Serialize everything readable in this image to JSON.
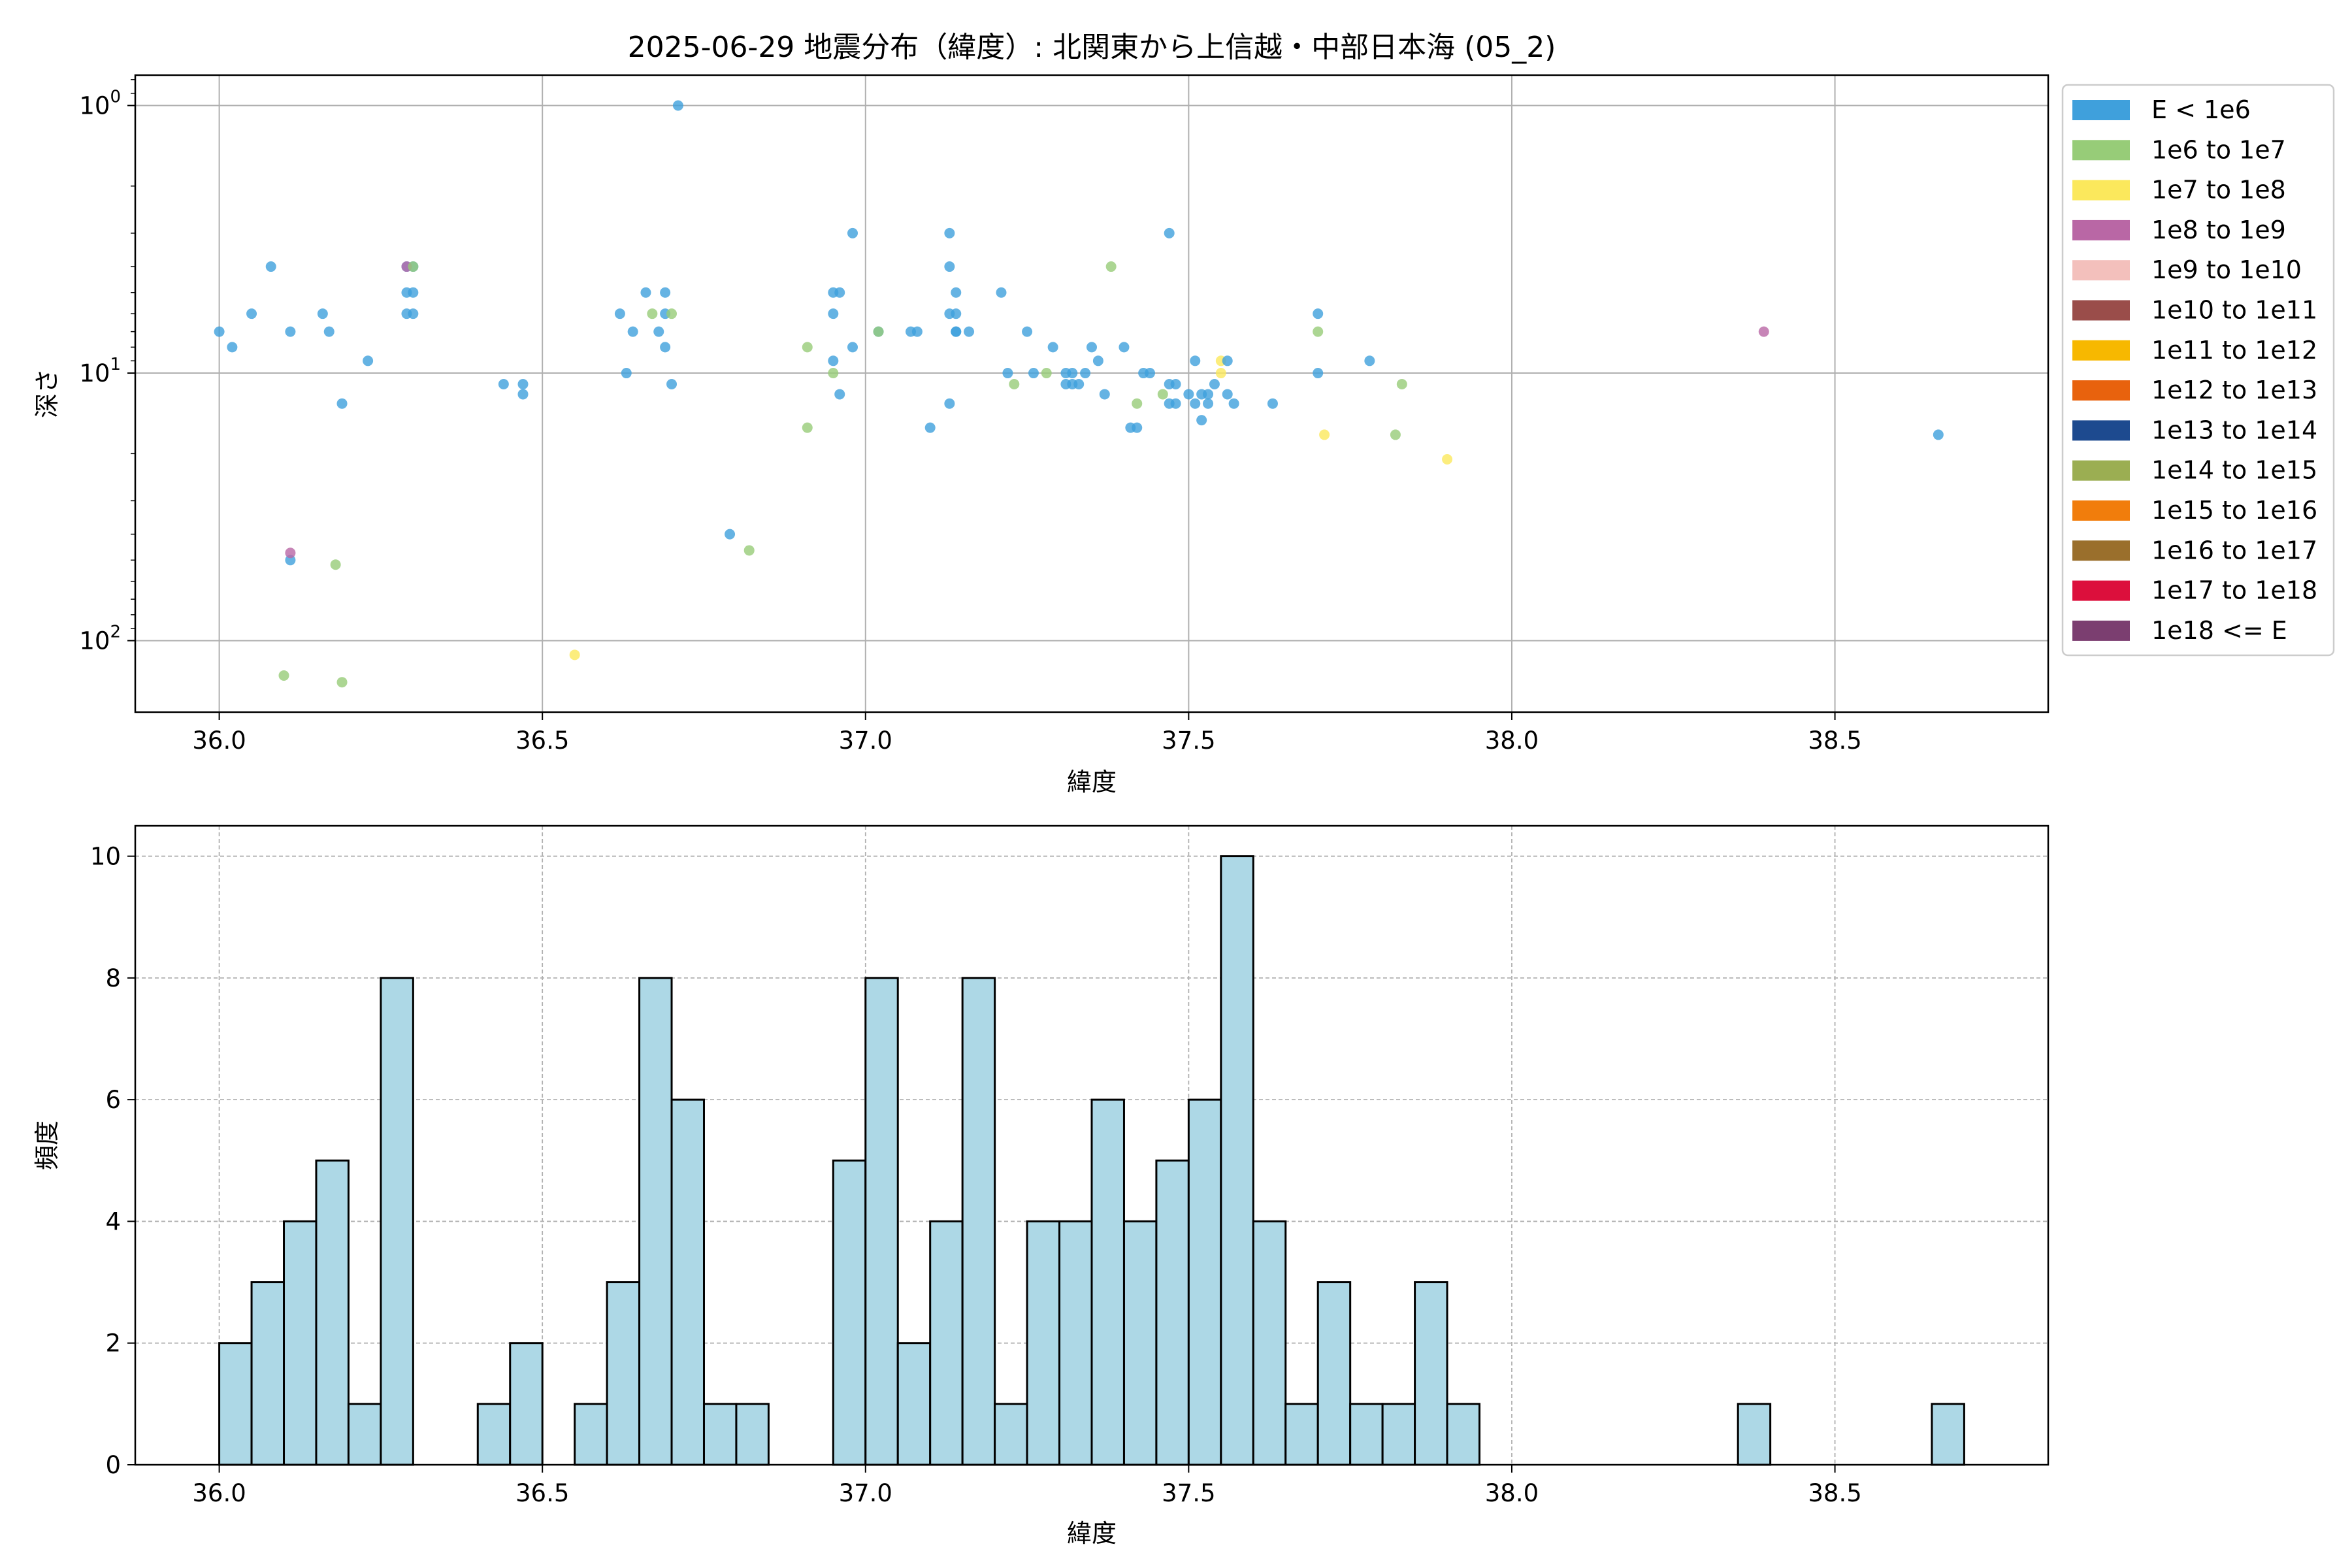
{
  "chart_data": [
    {
      "type": "scatter",
      "title": "2025-06-29 地震分布（緯度）: 北関東から上信越・中部日本海 (05_2)",
      "xlabel": "緯度",
      "ylabel": "深さ",
      "xlim": [
        35.87,
        38.83
      ],
      "ylim": [
        185,
        0.77
      ],
      "yscale": "log",
      "y_inverted": true,
      "grid": true,
      "legend_position": "outside-right",
      "x_ticks": [
        "36.0",
        "36.5",
        "37.0",
        "37.5",
        "38.0",
        "38.5"
      ],
      "x_tick_values": [
        36.0,
        36.5,
        37.0,
        37.5,
        38.0,
        38.5
      ],
      "y_tick_values": [
        1,
        10,
        100
      ],
      "y_tick_labels": [
        {
          "base": "10",
          "exp": "0"
        },
        {
          "base": "10",
          "exp": "1"
        },
        {
          "base": "10",
          "exp": "2"
        }
      ],
      "legend": [
        {
          "label": "E < 1e6",
          "color": "#3fa0dc"
        },
        {
          "label": "1e6 to 1e7",
          "color": "#97cc78"
        },
        {
          "label": "1e7 to 1e8",
          "color": "#fbe85c"
        },
        {
          "label": "1e8 to 1e9",
          "color": "#b967a5"
        },
        {
          "label": "1e9 to 1e10",
          "color": "#f3c0bc"
        },
        {
          "label": "1e10 to 1e11",
          "color": "#9a4d4a"
        },
        {
          "label": "1e11 to 1e12",
          "color": "#f7b800"
        },
        {
          "label": "1e12 to 1e13",
          "color": "#e8620d"
        },
        {
          "label": "1e13 to 1e14",
          "color": "#1d4a8f"
        },
        {
          "label": "1e14 to 1e15",
          "color": "#9bae52"
        },
        {
          "label": "1e15 to 1e16",
          "color": "#f17d0c"
        },
        {
          "label": "1e16 to 1e17",
          "color": "#9a6f2c"
        },
        {
          "label": "1e17 to 1e18",
          "color": "#dc0f3c"
        },
        {
          "label": "1e18 <= E",
          "color": "#7b3e70"
        }
      ],
      "points": [
        {
          "x": 36.0,
          "y": 7,
          "c": 0
        },
        {
          "x": 36.02,
          "y": 8,
          "c": 0
        },
        {
          "x": 36.05,
          "y": 6,
          "c": 0
        },
        {
          "x": 36.08,
          "y": 4,
          "c": 0
        },
        {
          "x": 36.11,
          "y": 7,
          "c": 0
        },
        {
          "x": 36.11,
          "y": 50,
          "c": 0
        },
        {
          "x": 36.11,
          "y": 47,
          "c": 3
        },
        {
          "x": 36.1,
          "y": 135,
          "c": 1
        },
        {
          "x": 36.16,
          "y": 6,
          "c": 0
        },
        {
          "x": 36.17,
          "y": 7,
          "c": 0
        },
        {
          "x": 36.18,
          "y": 52,
          "c": 1
        },
        {
          "x": 36.19,
          "y": 13,
          "c": 0
        },
        {
          "x": 36.19,
          "y": 143,
          "c": 1
        },
        {
          "x": 36.23,
          "y": 9,
          "c": 0
        },
        {
          "x": 36.29,
          "y": 4,
          "c": 0
        },
        {
          "x": 36.29,
          "y": 5,
          "c": 0
        },
        {
          "x": 36.29,
          "y": 6,
          "c": 0
        },
        {
          "x": 36.3,
          "y": 4,
          "c": 0
        },
        {
          "x": 36.3,
          "y": 5,
          "c": 0
        },
        {
          "x": 36.3,
          "y": 6,
          "c": 0
        },
        {
          "x": 36.29,
          "y": 4,
          "c": 3
        },
        {
          "x": 36.3,
          "y": 4,
          "c": 1
        },
        {
          "x": 36.44,
          "y": 11,
          "c": 0
        },
        {
          "x": 36.47,
          "y": 11,
          "c": 0
        },
        {
          "x": 36.47,
          "y": 12,
          "c": 0
        },
        {
          "x": 36.55,
          "y": 113,
          "c": 2
        },
        {
          "x": 36.62,
          "y": 6,
          "c": 0
        },
        {
          "x": 36.63,
          "y": 10,
          "c": 0
        },
        {
          "x": 36.64,
          "y": 7,
          "c": 0
        },
        {
          "x": 36.66,
          "y": 5,
          "c": 0
        },
        {
          "x": 36.67,
          "y": 6,
          "c": 1
        },
        {
          "x": 36.68,
          "y": 7,
          "c": 0
        },
        {
          "x": 36.69,
          "y": 5,
          "c": 0
        },
        {
          "x": 36.69,
          "y": 6,
          "c": 0
        },
        {
          "x": 36.7,
          "y": 6,
          "c": 1
        },
        {
          "x": 36.69,
          "y": 8,
          "c": 0
        },
        {
          "x": 36.7,
          "y": 11,
          "c": 0
        },
        {
          "x": 36.71,
          "y": 1,
          "c": 0
        },
        {
          "x": 36.79,
          "y": 40,
          "c": 0
        },
        {
          "x": 36.82,
          "y": 46,
          "c": 1
        },
        {
          "x": 36.91,
          "y": 8,
          "c": 1
        },
        {
          "x": 36.91,
          "y": 16,
          "c": 1
        },
        {
          "x": 36.95,
          "y": 5,
          "c": 0
        },
        {
          "x": 36.96,
          "y": 5,
          "c": 0
        },
        {
          "x": 36.95,
          "y": 6,
          "c": 0
        },
        {
          "x": 36.95,
          "y": 9,
          "c": 0
        },
        {
          "x": 36.95,
          "y": 10,
          "c": 1
        },
        {
          "x": 36.96,
          "y": 12,
          "c": 0
        },
        {
          "x": 36.98,
          "y": 3,
          "c": 0
        },
        {
          "x": 36.98,
          "y": 8,
          "c": 0
        },
        {
          "x": 37.02,
          "y": 7,
          "c": 0
        },
        {
          "x": 37.02,
          "y": 7,
          "c": 1
        },
        {
          "x": 37.07,
          "y": 7,
          "c": 0
        },
        {
          "x": 37.08,
          "y": 7,
          "c": 0
        },
        {
          "x": 37.1,
          "y": 16,
          "c": 0
        },
        {
          "x": 37.13,
          "y": 3,
          "c": 0
        },
        {
          "x": 37.13,
          "y": 4,
          "c": 0
        },
        {
          "x": 37.14,
          "y": 5,
          "c": 0
        },
        {
          "x": 37.13,
          "y": 6,
          "c": 0
        },
        {
          "x": 37.14,
          "y": 6,
          "c": 0
        },
        {
          "x": 37.14,
          "y": 7,
          "c": 0
        },
        {
          "x": 37.14,
          "y": 7,
          "c": 0
        },
        {
          "x": 37.16,
          "y": 7,
          "c": 0
        },
        {
          "x": 37.13,
          "y": 13,
          "c": 0
        },
        {
          "x": 37.21,
          "y": 5,
          "c": 0
        },
        {
          "x": 37.22,
          "y": 10,
          "c": 0
        },
        {
          "x": 37.23,
          "y": 11,
          "c": 1
        },
        {
          "x": 37.25,
          "y": 7,
          "c": 0
        },
        {
          "x": 37.26,
          "y": 10,
          "c": 0
        },
        {
          "x": 37.28,
          "y": 10,
          "c": 1
        },
        {
          "x": 37.29,
          "y": 8,
          "c": 0
        },
        {
          "x": 37.31,
          "y": 10,
          "c": 0
        },
        {
          "x": 37.31,
          "y": 11,
          "c": 0
        },
        {
          "x": 37.32,
          "y": 10,
          "c": 0
        },
        {
          "x": 37.32,
          "y": 11,
          "c": 0
        },
        {
          "x": 37.33,
          "y": 11,
          "c": 0
        },
        {
          "x": 37.34,
          "y": 10,
          "c": 0
        },
        {
          "x": 37.35,
          "y": 8,
          "c": 0
        },
        {
          "x": 37.36,
          "y": 9,
          "c": 0
        },
        {
          "x": 37.37,
          "y": 12,
          "c": 0
        },
        {
          "x": 37.38,
          "y": 4,
          "c": 1
        },
        {
          "x": 37.4,
          "y": 8,
          "c": 0
        },
        {
          "x": 37.41,
          "y": 16,
          "c": 0
        },
        {
          "x": 37.42,
          "y": 16,
          "c": 0
        },
        {
          "x": 37.42,
          "y": 13,
          "c": 1
        },
        {
          "x": 37.43,
          "y": 10,
          "c": 0
        },
        {
          "x": 37.44,
          "y": 10,
          "c": 0
        },
        {
          "x": 37.46,
          "y": 12,
          "c": 1
        },
        {
          "x": 37.47,
          "y": 3,
          "c": 0
        },
        {
          "x": 37.47,
          "y": 11,
          "c": 0
        },
        {
          "x": 37.48,
          "y": 11,
          "c": 0
        },
        {
          "x": 37.47,
          "y": 13,
          "c": 0
        },
        {
          "x": 37.48,
          "y": 13,
          "c": 0
        },
        {
          "x": 37.5,
          "y": 12,
          "c": 0
        },
        {
          "x": 37.51,
          "y": 9,
          "c": 0
        },
        {
          "x": 37.51,
          "y": 13,
          "c": 0
        },
        {
          "x": 37.52,
          "y": 12,
          "c": 0
        },
        {
          "x": 37.52,
          "y": 15,
          "c": 0
        },
        {
          "x": 37.53,
          "y": 12,
          "c": 0
        },
        {
          "x": 37.53,
          "y": 13,
          "c": 0
        },
        {
          "x": 37.54,
          "y": 11,
          "c": 0
        },
        {
          "x": 37.55,
          "y": 9,
          "c": 2
        },
        {
          "x": 37.55,
          "y": 10,
          "c": 2
        },
        {
          "x": 37.56,
          "y": 9,
          "c": 0
        },
        {
          "x": 37.56,
          "y": 12,
          "c": 0
        },
        {
          "x": 37.57,
          "y": 13,
          "c": 0
        },
        {
          "x": 37.63,
          "y": 13,
          "c": 0
        },
        {
          "x": 37.7,
          "y": 6,
          "c": 0
        },
        {
          "x": 37.7,
          "y": 7,
          "c": 1
        },
        {
          "x": 37.7,
          "y": 10,
          "c": 0
        },
        {
          "x": 37.71,
          "y": 17,
          "c": 2
        },
        {
          "x": 37.78,
          "y": 9,
          "c": 0
        },
        {
          "x": 37.82,
          "y": 17,
          "c": 1
        },
        {
          "x": 37.83,
          "y": 11,
          "c": 1
        },
        {
          "x": 37.9,
          "y": 21,
          "c": 2
        },
        {
          "x": 38.39,
          "y": 7,
          "c": 3
        },
        {
          "x": 38.66,
          "y": 17,
          "c": 0
        }
      ]
    },
    {
      "type": "bar",
      "xlabel": "緯度",
      "ylabel": "頻度",
      "xlim": [
        35.87,
        38.83
      ],
      "ylim": [
        0,
        10.5
      ],
      "grid": true,
      "x_ticks": [
        "36.0",
        "36.5",
        "37.0",
        "37.5",
        "38.0",
        "38.5"
      ],
      "x_tick_values": [
        36.0,
        36.5,
        37.0,
        37.5,
        38.0,
        38.5
      ],
      "y_ticks": [
        "0",
        "2",
        "4",
        "6",
        "8",
        "10"
      ],
      "y_tick_values": [
        0,
        2,
        4,
        6,
        8,
        10
      ],
      "bin_start": 36.0,
      "bin_width": 0.05,
      "values": [
        2,
        3,
        4,
        5,
        1,
        8,
        0,
        0,
        1,
        2,
        0,
        1,
        3,
        8,
        6,
        1,
        1,
        0,
        0,
        5,
        8,
        2,
        4,
        8,
        1,
        4,
        4,
        6,
        4,
        5,
        6,
        10,
        4,
        1,
        3,
        1,
        1,
        3,
        1,
        0,
        0,
        0,
        0,
        0,
        0,
        0,
        0,
        1,
        0,
        0,
        0,
        0,
        0,
        1
      ],
      "bar_color": "#add8e6",
      "edge_color": "#000000"
    }
  ]
}
